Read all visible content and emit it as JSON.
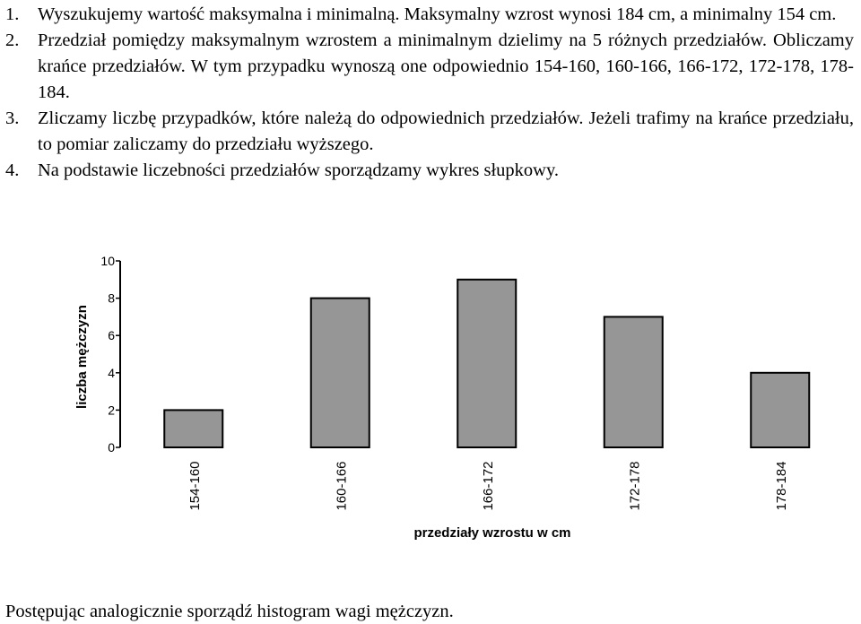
{
  "steps": [
    {
      "num": "1.",
      "text": "Wyszukujemy wartość maksymalna i minimalną. Maksymalny wzrost wynosi 184 cm, a minimalny 154 cm."
    },
    {
      "num": "2.",
      "text": "Przedział pomiędzy maksymalnym wzrostem a minimalnym dzielimy na 5 różnych przedziałów. Obliczamy krańce przedziałów. W tym przypadku wynoszą one odpowiednio 154-160, 160-166, 166-172, 172-178, 178-184."
    },
    {
      "num": "3.",
      "text": "Zliczamy liczbę przypadków, które należą do odpowiednich przedziałów. Jeżeli trafimy na krańce przedziału, to pomiar zaliczamy do przedziału wyższego."
    },
    {
      "num": "4.",
      "text": "Na podstawie liczebności przedziałów sporządzamy wykres słupkowy."
    }
  ],
  "chart_data": {
    "type": "bar",
    "categories": [
      "154-160",
      "160-166",
      "166-172",
      "172-178",
      "178-184"
    ],
    "values": [
      2,
      8,
      9,
      7,
      4
    ],
    "xlabel": "przedziały wzrostu w cm",
    "ylabel": "liczba mężczyzn",
    "ylim": [
      0,
      10
    ],
    "yticks": [
      0,
      2,
      4,
      6,
      8,
      10
    ],
    "bar_color": "#969696",
    "grid": false
  },
  "footer": "Postępując analogicznie sporządź histogram wagi mężczyzn."
}
